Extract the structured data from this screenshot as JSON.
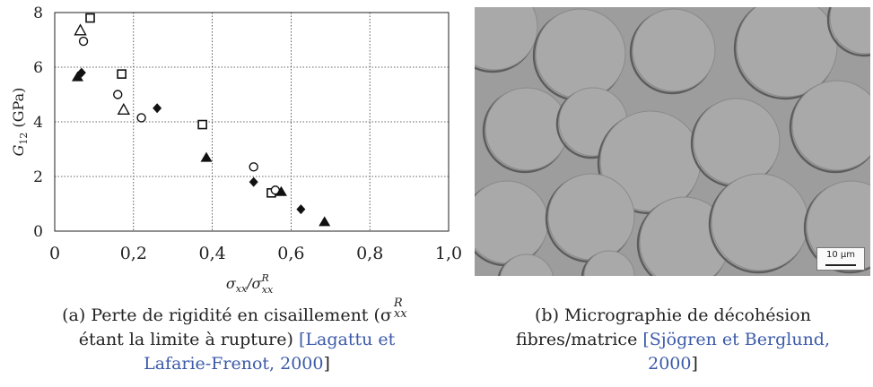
{
  "chart_data": {
    "type": "scatter",
    "ylabel_main": "G",
    "ylabel_sub": "12",
    "ylabel_unit": " (GPa)",
    "xlabel_main": "σ",
    "xlabel_sub": "xx",
    "xlabel_sep": "/σ",
    "xlabel_sup": "R",
    "xlim": [
      0,
      1.0
    ],
    "ylim": [
      0,
      8
    ],
    "xticks": [
      "0",
      "0,2",
      "0,4",
      "0,6",
      "0,8",
      "1,0"
    ],
    "xtick_values": [
      0,
      0.2,
      0.4,
      0.6,
      0.8,
      1.0
    ],
    "yticks": [
      "0",
      "2",
      "4",
      "6",
      "8"
    ],
    "ytick_values": [
      0,
      2,
      4,
      6,
      8
    ],
    "grid": true,
    "series": [
      {
        "marker": "open-square",
        "points": [
          [
            0.09,
            7.8
          ],
          [
            0.17,
            5.75
          ],
          [
            0.375,
            3.9
          ],
          [
            0.55,
            1.4
          ]
        ]
      },
      {
        "marker": "open-triangle",
        "points": [
          [
            0.065,
            7.35
          ],
          [
            0.175,
            4.45
          ]
        ]
      },
      {
        "marker": "open-circle",
        "points": [
          [
            0.073,
            6.95
          ],
          [
            0.16,
            5.0
          ],
          [
            0.22,
            4.15
          ],
          [
            0.505,
            2.35
          ],
          [
            0.56,
            1.5
          ]
        ]
      },
      {
        "marker": "filled-triangle",
        "points": [
          [
            0.058,
            5.65
          ],
          [
            0.385,
            2.7
          ],
          [
            0.575,
            1.45
          ],
          [
            0.685,
            0.35
          ]
        ]
      },
      {
        "marker": "filled-diamond",
        "points": [
          [
            0.068,
            5.8
          ],
          [
            0.26,
            4.5
          ],
          [
            0.505,
            1.8
          ],
          [
            0.625,
            0.8
          ]
        ]
      }
    ]
  },
  "photo": {
    "scale_label": "10 µm",
    "bg_color": "#9d9d9d",
    "fiber_color": "#a9a9a9",
    "shadow_color": "#5c5c5c"
  },
  "captions": {
    "a": {
      "line1": "(a) Perte de rigidité en cisaillement (σ",
      "line1_sup": "R",
      "line1_sub": "xx",
      "line2_start": "étant la limite à rupture) ",
      "line2_cite": "[Lagattu et",
      "line3_cite": "Lafarie-Frenot, 2000",
      "line3_end": "]"
    },
    "b": {
      "line1": "(b) Micrographie de décohésion",
      "line2_start": "fibres/matrice ",
      "line2_cite": "[Sjögren et Berglund,",
      "line3_cite": "2000",
      "line3_end": "]"
    }
  }
}
